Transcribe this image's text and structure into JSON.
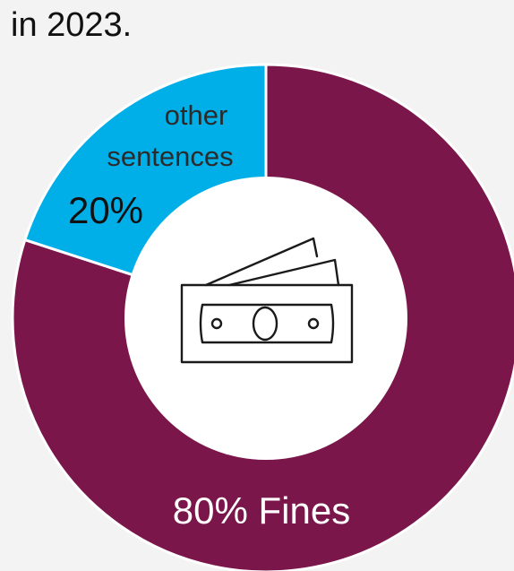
{
  "heading": "in 2023.",
  "chart_data": {
    "type": "pie",
    "variant": "donut",
    "categories": [
      "Fines",
      "other sentences"
    ],
    "values": [
      80,
      20
    ],
    "labels": [
      {
        "text": "80% Fines"
      },
      {
        "line1": "other",
        "line2": "sentences",
        "pct": "20%"
      }
    ],
    "colors": [
      "#7b164b",
      "#00aee8"
    ],
    "center_icon": "banknote-icon"
  }
}
